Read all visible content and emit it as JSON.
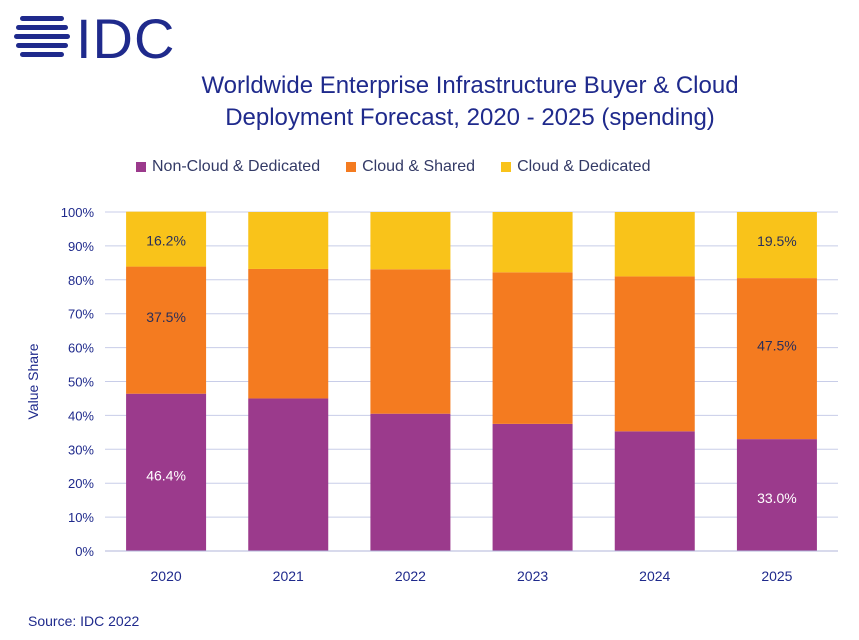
{
  "logo_text": "IDC",
  "colors": {
    "non_cloud": "#9b3a8c",
    "cloud_shared": "#f47b20",
    "cloud_dedicated": "#f9c31a",
    "brand": "#1f2a8c",
    "grid": "#c8cde8"
  },
  "chart_data": {
    "type": "bar",
    "stacked": true,
    "title_line1": "Worldwide Enterprise Infrastructure Buyer & Cloud",
    "title_line2": "Deployment Forecast, 2020 - 2025 (spending)",
    "ylabel": "Value Share",
    "xlabel": "",
    "ylim": [
      0,
      100
    ],
    "y_ticks": [
      "0%",
      "10%",
      "20%",
      "30%",
      "40%",
      "50%",
      "60%",
      "70%",
      "80%",
      "90%",
      "100%"
    ],
    "categories": [
      "2020",
      "2021",
      "2022",
      "2023",
      "2024",
      "2025"
    ],
    "series": [
      {
        "name": "Non-Cloud & Dedicated",
        "values": [
          46.4,
          45.0,
          40.5,
          37.5,
          35.3,
          33.0
        ],
        "color": "#9b3a8c",
        "labels": [
          "46.4%",
          "",
          "",
          "",
          "",
          "33.0%"
        ],
        "label_color": "#ffffff"
      },
      {
        "name": "Cloud & Shared",
        "values": [
          37.5,
          38.2,
          42.6,
          44.7,
          45.7,
          47.5
        ],
        "color": "#f47b20",
        "labels": [
          "37.5%",
          "",
          "",
          "",
          "",
          "47.5%"
        ],
        "label_color": "#2a2f5a"
      },
      {
        "name": "Cloud & Dedicated",
        "values": [
          16.2,
          16.8,
          16.9,
          17.8,
          19.0,
          19.5
        ],
        "color": "#f9c31a",
        "labels": [
          "16.2%",
          "",
          "",
          "",
          "",
          "19.5%"
        ],
        "label_color": "#2a2f5a"
      }
    ],
    "grid": true,
    "legend_position": "top"
  },
  "source": "Source: IDC 2022"
}
